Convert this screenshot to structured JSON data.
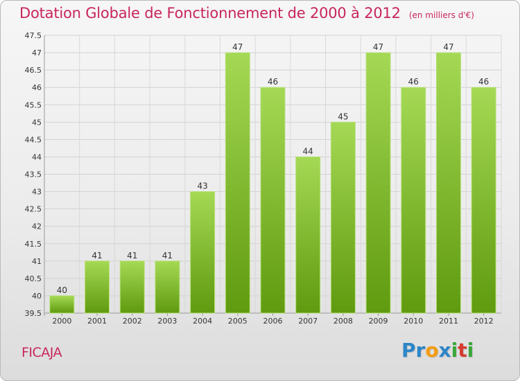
{
  "header": {
    "title": "Dotation Globale de Fonctionnement de 2000 à 2012",
    "unit": "(en milliers d'€)"
  },
  "footer": {
    "commune": "FICAJA",
    "logo": {
      "p": "P",
      "r": "r",
      "o": "o",
      "x": "x",
      "i1": "i",
      "t": "t",
      "i2": "i"
    }
  },
  "colors": {
    "title": "#c8255c",
    "bar_light": "#a5d955",
    "bar_dark": "#5f9a0f",
    "logo_p": "#2e86c8",
    "logo_r": "#2e86c8",
    "logo_o": "#f39c12",
    "logo_x": "#2e86c8",
    "logo_i": "#3aa639",
    "logo_t": "#d63b2f"
  },
  "chart_data": {
    "type": "bar",
    "title": "Dotation Globale de Fonctionnement de 2000 à 2012",
    "subtitle": "(en milliers d'€)",
    "xlabel": "",
    "ylabel": "",
    "categories": [
      "2000",
      "2001",
      "2002",
      "2003",
      "2004",
      "2005",
      "2006",
      "2007",
      "2008",
      "2009",
      "2010",
      "2011",
      "2012"
    ],
    "values": [
      40,
      41,
      41,
      41,
      43,
      47,
      46,
      44,
      45,
      47,
      46,
      47,
      46
    ],
    "data_labels": [
      "40",
      "41",
      "41",
      "41",
      "43",
      "47",
      "46",
      "44",
      "45",
      "47",
      "46",
      "47",
      "46"
    ],
    "ylim": [
      39.5,
      47.5
    ],
    "yticks": [
      "39.5",
      "40",
      "40.5",
      "41",
      "41.5",
      "42",
      "42.5",
      "43",
      "43.5",
      "44",
      "44.5",
      "45",
      "45.5",
      "46",
      "46.5",
      "47",
      "47.5"
    ],
    "grid": true,
    "legend": "none"
  }
}
